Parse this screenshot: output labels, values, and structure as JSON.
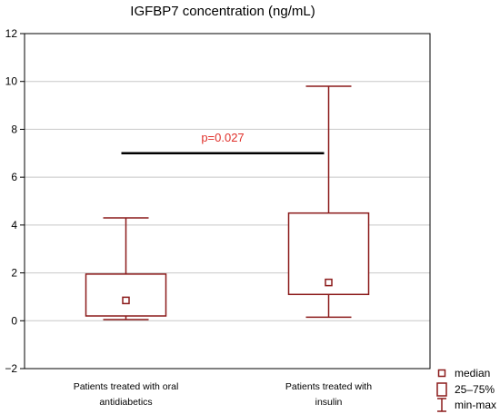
{
  "chart_data": {
    "type": "box",
    "title": "IGFBP7 concentration (ng/mL)",
    "xlabel": "",
    "ylabel": "",
    "ylim": [
      -2,
      12
    ],
    "yticks": [
      -2,
      0,
      2,
      4,
      6,
      8,
      10,
      12
    ],
    "grid": true,
    "categories": [
      "Patients treated with oral antidiabetics",
      "Patients treated with insulin"
    ],
    "category_lines": [
      [
        "Patients treated with oral",
        "antidiabetics"
      ],
      [
        "Patients treated with",
        "insulin"
      ]
    ],
    "boxes": [
      {
        "min": 0.05,
        "q1": 0.2,
        "median": 0.85,
        "q3": 1.95,
        "max": 4.3
      },
      {
        "min": 0.15,
        "q1": 1.1,
        "median": 1.6,
        "q3": 4.5,
        "max": 9.8
      }
    ],
    "annotation": {
      "text": "p=0.027",
      "y": 7.0
    },
    "legend": {
      "placement": "bottom-right",
      "items": [
        {
          "symbol": "median",
          "label": "median"
        },
        {
          "symbol": "box",
          "label": "25–75%"
        },
        {
          "symbol": "whisker",
          "label": "min-max"
        }
      ]
    },
    "colors": {
      "box": "#8b1a1a",
      "annotation_text": "#e0302a",
      "annotation_line": "#000000"
    }
  }
}
